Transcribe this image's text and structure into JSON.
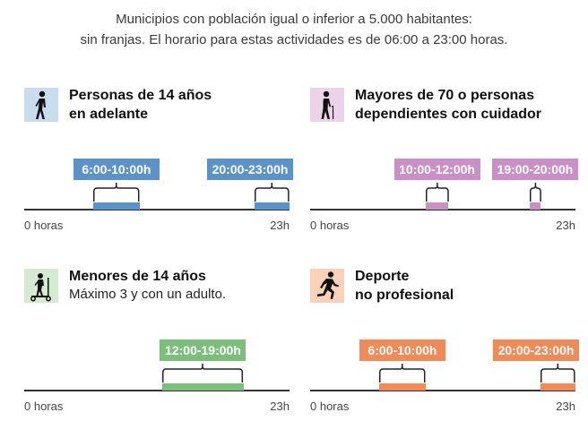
{
  "intro": {
    "line1": "Municipios con población igual o inferior a 5.000 habitantes:",
    "line2": "sin franjas. El horario para estas actividades es de 06:00 a 23:00 horas."
  },
  "axis": {
    "start_label": "0 horas",
    "end_label": "23h"
  },
  "sections": [
    {
      "title_line1": "Personas de 14 años",
      "title_line2": "en adelante",
      "icon": "walking-person-icon",
      "color": "#5b93c9",
      "icon_bg": "#c9dcee",
      "slots": [
        {
          "label": "6:00-10:00h",
          "start": 6,
          "end": 10
        },
        {
          "label": "20:00-23:00h",
          "start": 20,
          "end": 23
        }
      ]
    },
    {
      "title_line1": "Mayores de 70 o personas",
      "title_line2": "dependientes con cuidador",
      "icon": "elderly-with-cane-icon",
      "color": "#c98fc6",
      "icon_bg": "#ecd3ea",
      "slots": [
        {
          "label": "10:00-12:00h",
          "start": 10,
          "end": 12
        },
        {
          "label": "19:00-20:00h",
          "start": 19,
          "end": 20
        }
      ]
    },
    {
      "title_line1": "Menores de 14 años",
      "subtitle": "Máximo 3 y con un adulto.",
      "icon": "child-scooter-icon",
      "color": "#7bbf7a",
      "icon_bg": "#d4ebd2",
      "slots": [
        {
          "label": "12:00-19:00h",
          "start": 12,
          "end": 19
        }
      ]
    },
    {
      "title_line1": "Deporte",
      "title_line2": "no profesional",
      "icon": "running-person-icon",
      "color": "#f08a56",
      "icon_bg": "#fbd1b9",
      "slots": [
        {
          "label": "6:00-10:00h",
          "start": 6,
          "end": 10
        },
        {
          "label": "20:00-23:00h",
          "start": 20,
          "end": 23
        }
      ]
    }
  ]
}
